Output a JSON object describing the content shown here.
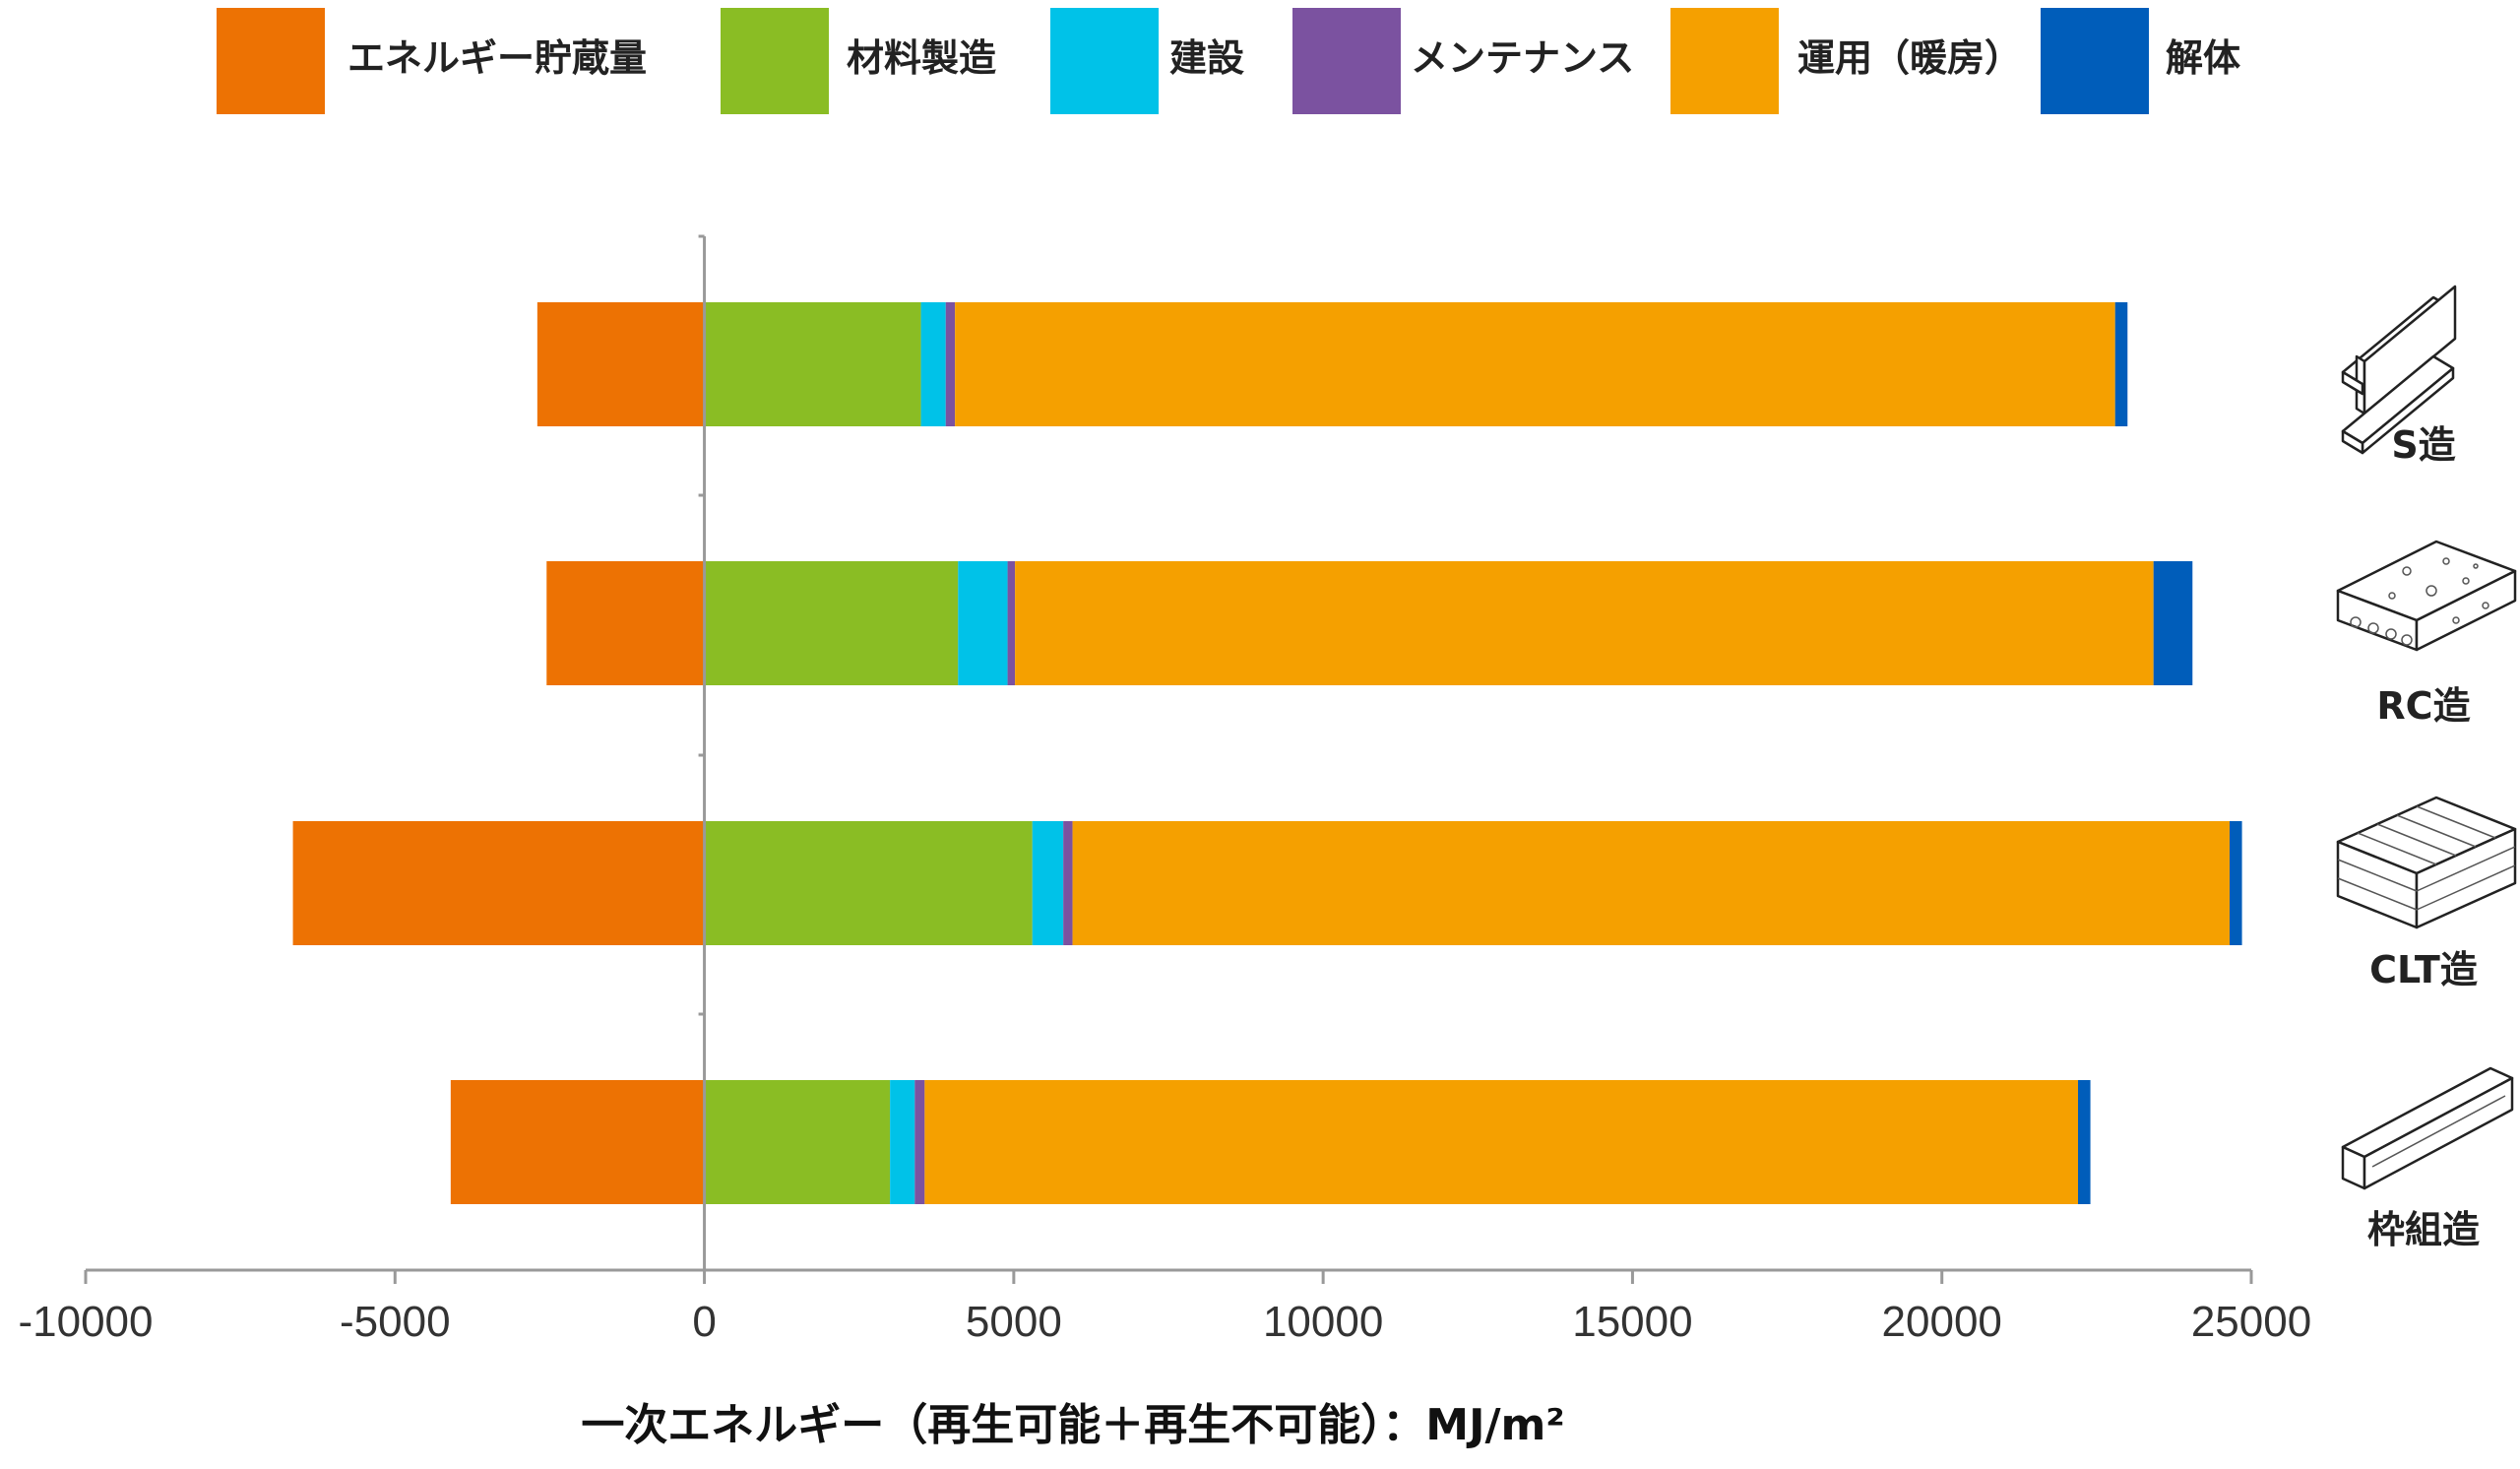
{
  "chart_data": {
    "type": "bar",
    "orientation": "horizontal",
    "stacked": true,
    "categories": [
      "S造",
      "RC造",
      "CLT造",
      "枠組造"
    ],
    "series": [
      {
        "name": "エネルギー貯蔵量",
        "color": "#ED7203",
        "values": [
          -2700,
          -2550,
          -6650,
          -4100
        ]
      },
      {
        "name": "材料製造",
        "color": "#8ABD24",
        "values": [
          3500,
          4100,
          5300,
          3000
        ]
      },
      {
        "name": "建設",
        "color": "#00C2E8",
        "values": [
          400,
          800,
          500,
          400
        ]
      },
      {
        "name": "メンテナンス",
        "color": "#7B52A0",
        "values": [
          150,
          120,
          150,
          160
        ]
      },
      {
        "name": "運用（暖房）",
        "color": "#F5A000",
        "values": [
          18750,
          18400,
          18700,
          18640
        ]
      },
      {
        "name": "解体",
        "color": "#005DBA",
        "values": [
          200,
          630,
          200,
          200
        ]
      }
    ],
    "xlim": [
      -10000,
      25000
    ],
    "xticks": [
      "-10000",
      "-5000",
      "0",
      "5000",
      "10000",
      "15000",
      "20000",
      "25000"
    ],
    "xlabel": "一次エネルギー（再生可能＋再生不可能）：MJ/m²",
    "legend_position": "top",
    "grid": false
  },
  "icons": [
    "steel-h-beam-icon",
    "concrete-slab-icon",
    "clt-panel-icon",
    "timber-frame-icon"
  ]
}
